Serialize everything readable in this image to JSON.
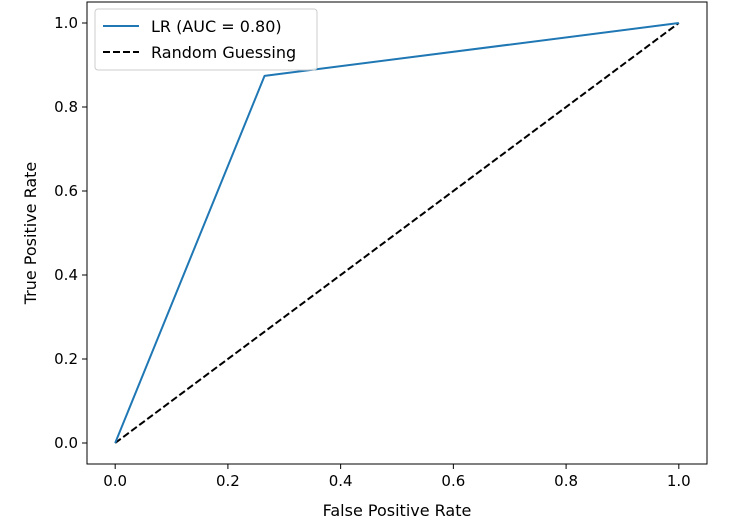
{
  "chart_data": {
    "type": "line",
    "title": "",
    "xlabel": "False Positive Rate",
    "ylabel": "True Positive Rate",
    "xlim": [
      -0.05,
      1.05
    ],
    "ylim": [
      -0.05,
      1.05
    ],
    "xticks": [
      0.0,
      0.2,
      0.4,
      0.6,
      0.8,
      1.0
    ],
    "yticks": [
      0.0,
      0.2,
      0.4,
      0.6,
      0.8,
      1.0
    ],
    "grid": false,
    "legend_position": "upper-left",
    "series": [
      {
        "name": "LR (AUC = 0.80)",
        "x": [
          0.0,
          0.265,
          1.0
        ],
        "y": [
          0.0,
          0.874,
          1.0
        ],
        "color": "#1f77b4",
        "style": "solid"
      },
      {
        "name": "Random Guessing",
        "x": [
          0.0,
          1.0
        ],
        "y": [
          0.0,
          1.0
        ],
        "color": "#000000",
        "style": "dashed"
      }
    ]
  }
}
